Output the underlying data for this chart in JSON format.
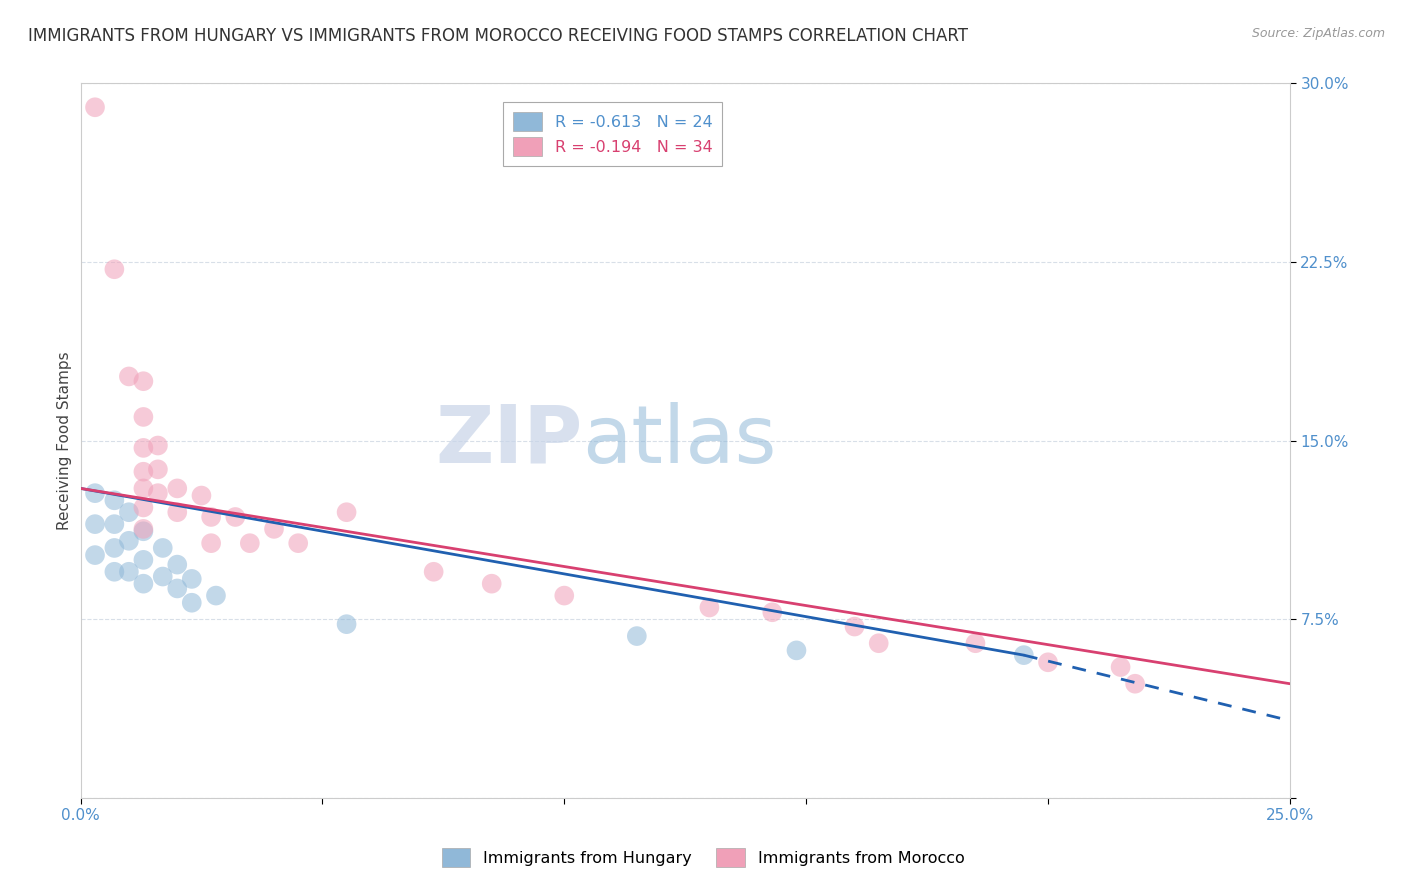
{
  "title": "IMMIGRANTS FROM HUNGARY VS IMMIGRANTS FROM MOROCCO RECEIVING FOOD STAMPS CORRELATION CHART",
  "source": "Source: ZipAtlas.com",
  "ylabel": "Receiving Food Stamps",
  "xlim": [
    0.0,
    0.25
  ],
  "ylim": [
    0.0,
    0.3
  ],
  "x_ticks": [
    0.0,
    0.05,
    0.1,
    0.15,
    0.2,
    0.25
  ],
  "y_ticks": [
    0.0,
    0.075,
    0.15,
    0.225,
    0.3
  ],
  "x_tick_labels": [
    "0.0%",
    "",
    "",
    "",
    "",
    "25.0%"
  ],
  "y_tick_labels": [
    "",
    "7.5%",
    "15.0%",
    "22.5%",
    "30.0%"
  ],
  "legend_entries": [
    {
      "label": "R = -0.613   N = 24",
      "color": "#a8c4e0"
    },
    {
      "label": "R = -0.194   N = 34",
      "color": "#f4a0b0"
    }
  ],
  "hungary_color": "#90b8d8",
  "morocco_color": "#f0a0b8",
  "hungary_trend_solid": {
    "x_start": 0.0,
    "y_start": 0.13,
    "x_end": 0.195,
    "y_end": 0.06
  },
  "hungary_trend_dash": {
    "x_start": 0.195,
    "y_start": 0.06,
    "x_end": 0.255,
    "y_end": 0.03
  },
  "morocco_trend": {
    "x_start": 0.0,
    "y_start": 0.13,
    "x_end": 0.25,
    "y_end": 0.048
  },
  "hungary_scatter": [
    [
      0.003,
      0.128
    ],
    [
      0.003,
      0.115
    ],
    [
      0.003,
      0.102
    ],
    [
      0.007,
      0.125
    ],
    [
      0.007,
      0.115
    ],
    [
      0.007,
      0.105
    ],
    [
      0.007,
      0.095
    ],
    [
      0.01,
      0.12
    ],
    [
      0.01,
      0.108
    ],
    [
      0.01,
      0.095
    ],
    [
      0.013,
      0.112
    ],
    [
      0.013,
      0.1
    ],
    [
      0.013,
      0.09
    ],
    [
      0.017,
      0.105
    ],
    [
      0.017,
      0.093
    ],
    [
      0.02,
      0.098
    ],
    [
      0.02,
      0.088
    ],
    [
      0.023,
      0.092
    ],
    [
      0.023,
      0.082
    ],
    [
      0.028,
      0.085
    ],
    [
      0.055,
      0.073
    ],
    [
      0.115,
      0.068
    ],
    [
      0.148,
      0.062
    ],
    [
      0.195,
      0.06
    ]
  ],
  "morocco_scatter": [
    [
      0.003,
      0.29
    ],
    [
      0.007,
      0.222
    ],
    [
      0.01,
      0.177
    ],
    [
      0.013,
      0.175
    ],
    [
      0.013,
      0.16
    ],
    [
      0.013,
      0.147
    ],
    [
      0.013,
      0.137
    ],
    [
      0.013,
      0.13
    ],
    [
      0.013,
      0.122
    ],
    [
      0.013,
      0.113
    ],
    [
      0.016,
      0.148
    ],
    [
      0.016,
      0.138
    ],
    [
      0.016,
      0.128
    ],
    [
      0.02,
      0.13
    ],
    [
      0.02,
      0.12
    ],
    [
      0.025,
      0.127
    ],
    [
      0.027,
      0.118
    ],
    [
      0.027,
      0.107
    ],
    [
      0.032,
      0.118
    ],
    [
      0.035,
      0.107
    ],
    [
      0.04,
      0.113
    ],
    [
      0.045,
      0.107
    ],
    [
      0.055,
      0.12
    ],
    [
      0.073,
      0.095
    ],
    [
      0.085,
      0.09
    ],
    [
      0.1,
      0.085
    ],
    [
      0.13,
      0.08
    ],
    [
      0.143,
      0.078
    ],
    [
      0.16,
      0.072
    ],
    [
      0.165,
      0.065
    ],
    [
      0.185,
      0.065
    ],
    [
      0.2,
      0.057
    ],
    [
      0.215,
      0.055
    ],
    [
      0.218,
      0.048
    ]
  ],
  "watermark_zip": "ZIP",
  "watermark_atlas": "atlas",
  "background_color": "#ffffff",
  "grid_color": "#d8dfe8",
  "title_fontsize": 12,
  "axis_label_fontsize": 11,
  "tick_fontsize": 11,
  "tick_color": "#5090cc"
}
